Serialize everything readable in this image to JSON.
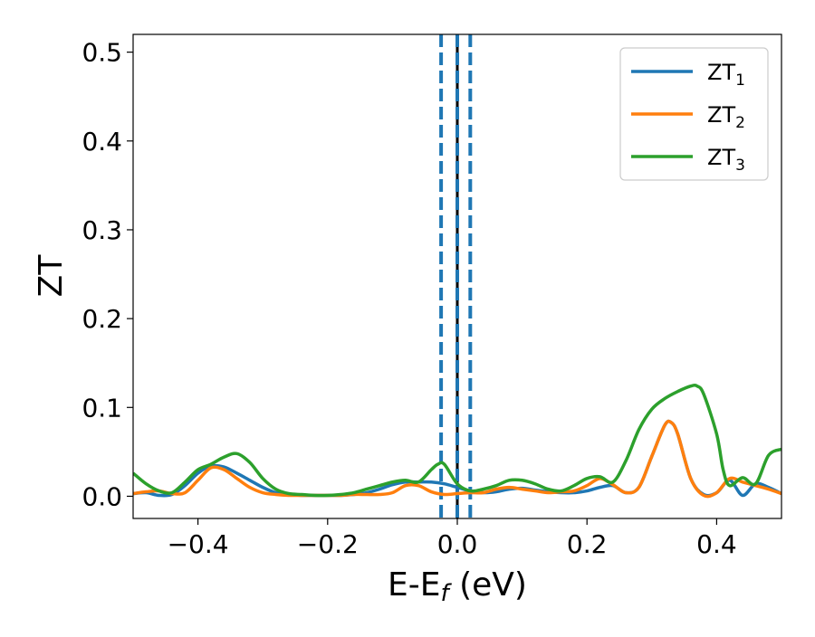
{
  "chart_data": {
    "type": "line",
    "xlabel": {
      "main": "E-E",
      "sub": "f",
      "suffix": " (eV)"
    },
    "ylabel": "ZT",
    "xlim": [
      -0.5,
      0.5
    ],
    "ylim": [
      -0.025,
      0.52
    ],
    "xticks": [
      -0.4,
      -0.2,
      0.0,
      0.2,
      0.4
    ],
    "xtick_labels": [
      "−0.4",
      "−0.2",
      "0.0",
      "0.2",
      "0.4"
    ],
    "yticks": [
      0.0,
      0.1,
      0.2,
      0.3,
      0.4,
      0.5
    ],
    "ytick_labels": [
      "0.0",
      "0.1",
      "0.2",
      "0.3",
      "0.4",
      "0.5"
    ],
    "grid": false,
    "legend_position": "top-right",
    "vlines": [
      {
        "x": -0.025,
        "style": "dashed",
        "color": "#1f77b4"
      },
      {
        "x": 0.0,
        "style": "solid",
        "color": "#000000"
      },
      {
        "x": 0.0,
        "style": "dashed",
        "color": "#1f77b4"
      },
      {
        "x": 0.02,
        "style": "dashed",
        "color": "#1f77b4"
      }
    ],
    "series": [
      {
        "name": "ZT",
        "sub": "1",
        "color": "#1f77b4",
        "x": [
          -0.5,
          -0.48,
          -0.46,
          -0.44,
          -0.42,
          -0.4,
          -0.38,
          -0.36,
          -0.34,
          -0.32,
          -0.3,
          -0.28,
          -0.26,
          -0.24,
          -0.22,
          -0.2,
          -0.18,
          -0.16,
          -0.14,
          -0.12,
          -0.1,
          -0.08,
          -0.06,
          -0.04,
          -0.02,
          0.0,
          0.02,
          0.04,
          0.06,
          0.08,
          0.1,
          0.12,
          0.14,
          0.16,
          0.18,
          0.2,
          0.22,
          0.24,
          0.26,
          0.28,
          0.3,
          0.32,
          0.33,
          0.34,
          0.36,
          0.38,
          0.4,
          0.42,
          0.44,
          0.46,
          0.48,
          0.5
        ],
        "y": [
          0.003,
          0.004,
          0.001,
          0.002,
          0.012,
          0.026,
          0.034,
          0.033,
          0.026,
          0.018,
          0.01,
          0.004,
          0.002,
          0.001,
          0.001,
          0.001,
          0.001,
          0.002,
          0.004,
          0.008,
          0.013,
          0.016,
          0.016,
          0.016,
          0.014,
          0.01,
          0.006,
          0.004,
          0.005,
          0.008,
          0.009,
          0.007,
          0.005,
          0.004,
          0.004,
          0.006,
          0.01,
          0.012,
          0.004,
          0.01,
          0.045,
          0.08,
          0.083,
          0.07,
          0.02,
          0.002,
          0.004,
          0.018,
          0.001,
          0.014,
          0.01,
          0.003
        ]
      },
      {
        "name": "ZT",
        "sub": "2",
        "color": "#ff7f0e",
        "x": [
          -0.5,
          -0.48,
          -0.46,
          -0.44,
          -0.42,
          -0.4,
          -0.38,
          -0.36,
          -0.34,
          -0.32,
          -0.3,
          -0.28,
          -0.26,
          -0.24,
          -0.22,
          -0.2,
          -0.18,
          -0.16,
          -0.14,
          -0.12,
          -0.1,
          -0.08,
          -0.06,
          -0.04,
          -0.02,
          0.0,
          0.02,
          0.04,
          0.06,
          0.08,
          0.1,
          0.12,
          0.14,
          0.16,
          0.18,
          0.2,
          0.22,
          0.24,
          0.26,
          0.28,
          0.3,
          0.32,
          0.33,
          0.34,
          0.36,
          0.38,
          0.4,
          0.42,
          0.44,
          0.46,
          0.48,
          0.5
        ],
        "y": [
          0.003,
          0.005,
          0.006,
          0.003,
          0.004,
          0.018,
          0.032,
          0.03,
          0.02,
          0.01,
          0.004,
          0.002,
          0.001,
          0.001,
          0.001,
          0.001,
          0.001,
          0.002,
          0.002,
          0.002,
          0.004,
          0.012,
          0.012,
          0.005,
          0.002,
          0.003,
          0.004,
          0.004,
          0.008,
          0.01,
          0.008,
          0.006,
          0.004,
          0.005,
          0.006,
          0.012,
          0.02,
          0.013,
          0.004,
          0.01,
          0.045,
          0.08,
          0.083,
          0.07,
          0.02,
          0.001,
          0.004,
          0.02,
          0.016,
          0.012,
          0.008,
          0.003
        ]
      },
      {
        "name": "ZT",
        "sub": "3",
        "color": "#2ca02c",
        "x": [
          -0.5,
          -0.48,
          -0.46,
          -0.44,
          -0.42,
          -0.4,
          -0.38,
          -0.36,
          -0.34,
          -0.32,
          -0.3,
          -0.28,
          -0.26,
          -0.24,
          -0.22,
          -0.2,
          -0.18,
          -0.16,
          -0.14,
          -0.12,
          -0.1,
          -0.08,
          -0.06,
          -0.04,
          -0.03,
          -0.02,
          0.0,
          0.02,
          0.04,
          0.06,
          0.08,
          0.1,
          0.12,
          0.14,
          0.16,
          0.18,
          0.2,
          0.22,
          0.24,
          0.26,
          0.28,
          0.3,
          0.32,
          0.34,
          0.36,
          0.37,
          0.38,
          0.4,
          0.41,
          0.42,
          0.44,
          0.46,
          0.48,
          0.5
        ],
        "y": [
          0.026,
          0.014,
          0.006,
          0.004,
          0.016,
          0.03,
          0.036,
          0.044,
          0.048,
          0.038,
          0.02,
          0.008,
          0.003,
          0.002,
          0.001,
          0.001,
          0.002,
          0.004,
          0.008,
          0.012,
          0.016,
          0.018,
          0.016,
          0.03,
          0.036,
          0.036,
          0.014,
          0.006,
          0.008,
          0.012,
          0.018,
          0.018,
          0.014,
          0.008,
          0.006,
          0.012,
          0.02,
          0.022,
          0.016,
          0.04,
          0.075,
          0.098,
          0.11,
          0.118,
          0.124,
          0.124,
          0.115,
          0.07,
          0.03,
          0.012,
          0.021,
          0.014,
          0.046,
          0.053
        ]
      }
    ]
  }
}
